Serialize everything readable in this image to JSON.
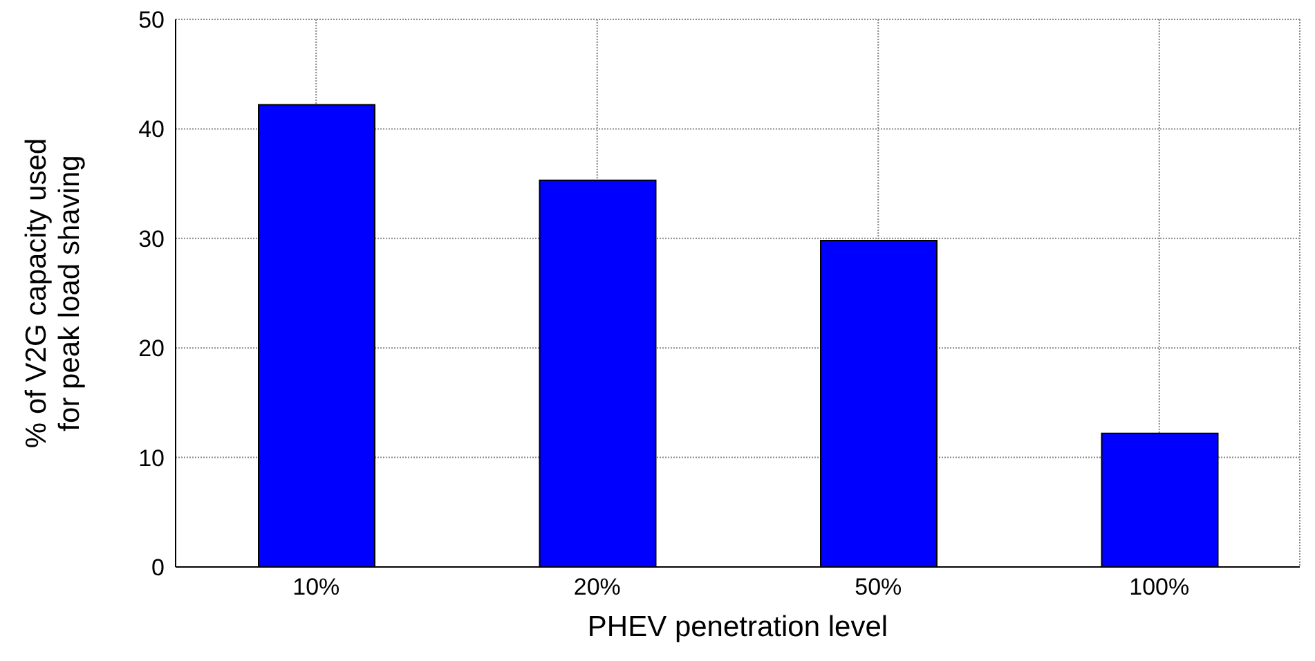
{
  "chart_data": {
    "type": "bar",
    "xlabel": "PHEV penetration level",
    "ylabel": "% of V2G capacity used\nfor peak load shaving",
    "categories": [
      "10%",
      "20%",
      "50%",
      "100%"
    ],
    "values": [
      42.2,
      35.3,
      29.8,
      12.2
    ],
    "color": "#0000ff",
    "ylim": [
      0,
      50
    ],
    "yticks": [
      0,
      10,
      20,
      30,
      40,
      50
    ],
    "grid": true
  }
}
